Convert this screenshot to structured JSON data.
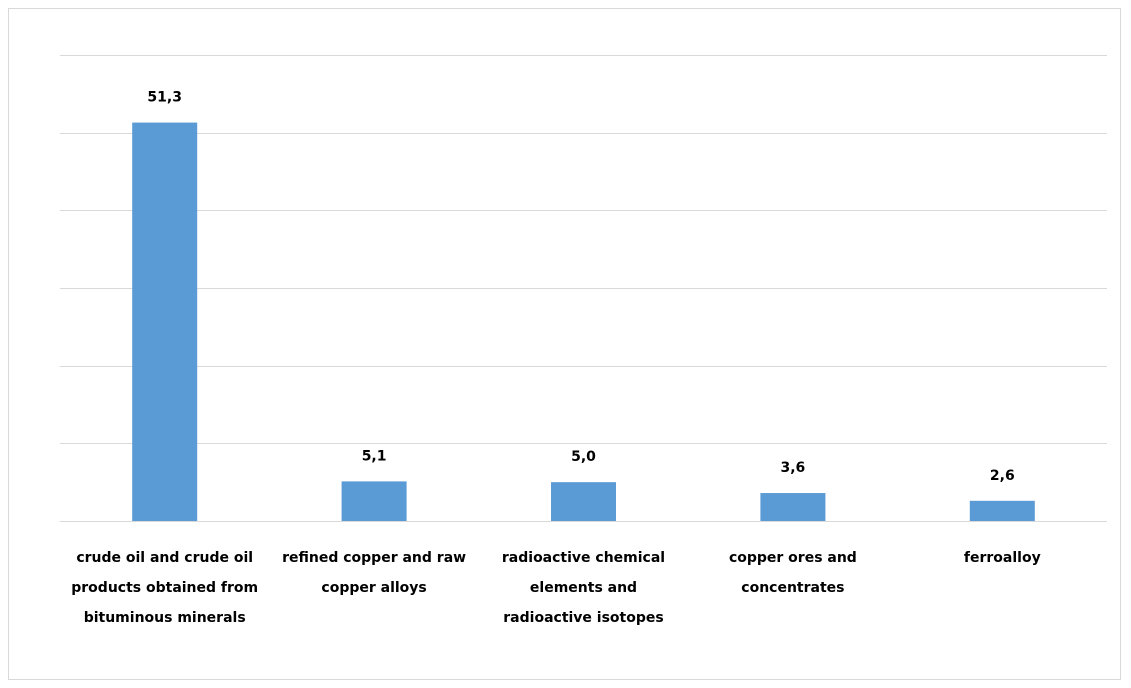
{
  "chart_data": {
    "type": "bar",
    "categories": [
      "crude oil and crude oil products obtained from bituminous minerals",
      "refined copper and raw copper alloys",
      "radioactive chemical elements and radioactive isotopes",
      "copper ores and concentrates",
      "ferroalloy"
    ],
    "category_lines": [
      [
        "crude oil and crude oil",
        "products obtained from",
        "bituminous minerals"
      ],
      [
        "refined copper and raw",
        "copper alloys"
      ],
      [
        "radioactive chemical",
        "elements and",
        "radioactive isotopes"
      ],
      [
        "copper ores and",
        "concentrates"
      ],
      [
        "ferroalloy"
      ]
    ],
    "values": [
      51.3,
      5.1,
      5.0,
      3.6,
      2.6
    ],
    "value_labels": [
      "51,3",
      "5,1",
      "5,0",
      "3,6",
      "2,6"
    ],
    "title": "",
    "xlabel": "",
    "ylabel": "",
    "ylim": [
      0,
      60
    ],
    "grid": true,
    "legend": "none",
    "colors": {
      "bar": "#5b9bd5",
      "grid": "#d9d9d9",
      "axis": "#d9d9d9",
      "text": "#000000",
      "border": "#d9d9d9"
    }
  }
}
